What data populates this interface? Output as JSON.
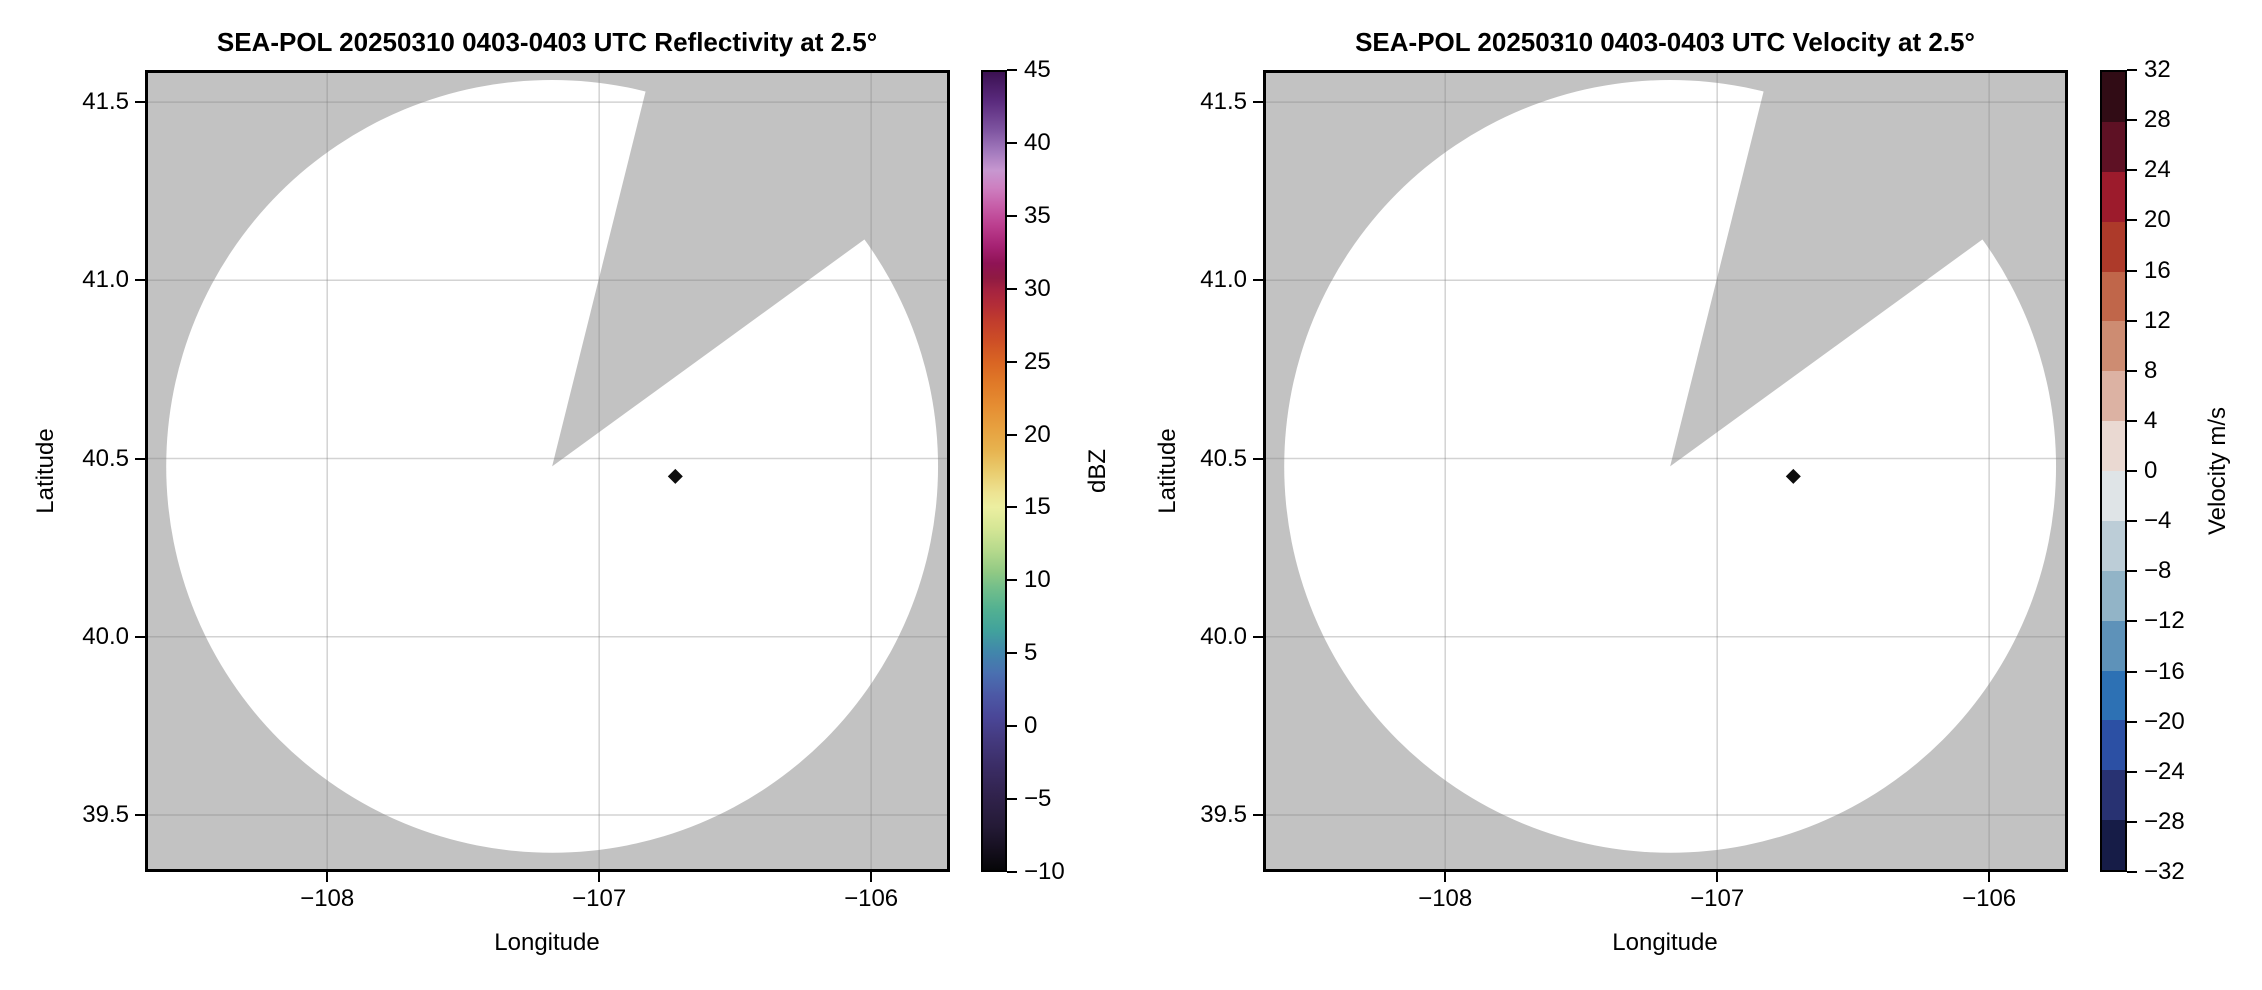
{
  "figure": {
    "background": "#ffffff",
    "mask_gray": "#c2c2c2",
    "scan_white": "#ffffff",
    "grid_color": "rgba(130,130,130,0.35)",
    "marker_color": "#0d0d0d",
    "spine_color": "#000000"
  },
  "panels": [
    {
      "title": "SEA-POL 20250310 0403-0403 UTC Reflectivity at 2.5°",
      "xlabel": "Longitude",
      "ylabel": "Latitude",
      "xtick_labels": [
        "−108",
        "−107",
        "−106"
      ],
      "ytick_labels": [
        "41.5",
        "41.0",
        "40.5",
        "40.0",
        "39.5"
      ]
    },
    {
      "title": "SEA-POL 20250310 0403-0403 UTC Velocity at 2.5°",
      "xlabel": "Longitude",
      "ylabel": "Latitude",
      "xtick_labels": [
        "−108",
        "−107",
        "−106"
      ],
      "ytick_labels": [
        "41.5",
        "41.0",
        "40.5",
        "40.0",
        "39.5"
      ]
    }
  ],
  "colorbars": [
    {
      "label": "dBZ",
      "type": "gradient",
      "vmin": -10,
      "vmax": 45,
      "tick_values": [
        45,
        40,
        35,
        30,
        25,
        20,
        15,
        10,
        5,
        0,
        -5,
        -10
      ],
      "tick_labels": [
        "45",
        "40",
        "35",
        "30",
        "25",
        "20",
        "15",
        "10",
        "5",
        "0",
        "−5",
        "−10"
      ],
      "gradient_stops": [
        [
          45,
          "#3b1152"
        ],
        [
          43,
          "#5a2a7d"
        ],
        [
          41,
          "#7e54a0"
        ],
        [
          39.5,
          "#a37abd"
        ],
        [
          38.2,
          "#c797d0"
        ],
        [
          37,
          "#cd7fc0"
        ],
        [
          35.8,
          "#c75fa9"
        ],
        [
          34.5,
          "#bc4090"
        ],
        [
          33,
          "#a62273"
        ],
        [
          31.8,
          "#8f1355"
        ],
        [
          30.8,
          "#8f1a42"
        ],
        [
          30,
          "#a42240"
        ],
        [
          29,
          "#b22c38"
        ],
        [
          28,
          "#bf3a2e"
        ],
        [
          26.5,
          "#cd4e26"
        ],
        [
          25,
          "#d96523"
        ],
        [
          23.5,
          "#e07a28"
        ],
        [
          22,
          "#e58d32"
        ],
        [
          20.5,
          "#e7a03f"
        ],
        [
          19,
          "#e7b24e"
        ],
        [
          17.5,
          "#e9cb6d"
        ],
        [
          16,
          "#ede392"
        ],
        [
          15,
          "#ecefa1"
        ],
        [
          13.5,
          "#d4e695"
        ],
        [
          12,
          "#b5d98c"
        ],
        [
          10.5,
          "#90c984"
        ],
        [
          9.5,
          "#74bf8a"
        ],
        [
          8,
          "#53b191"
        ],
        [
          6.5,
          "#41a29c"
        ],
        [
          5,
          "#4186ab"
        ],
        [
          3.5,
          "#4a6fb0"
        ],
        [
          2,
          "#4c58a5"
        ],
        [
          0.5,
          "#4a4697"
        ],
        [
          -1,
          "#443a7f"
        ],
        [
          -3,
          "#3a2c64"
        ],
        [
          -5,
          "#30224b"
        ],
        [
          -7,
          "#241a36"
        ],
        [
          -8.5,
          "#161020"
        ],
        [
          -10,
          "#060608"
        ]
      ]
    },
    {
      "label": "Velocity m/s",
      "type": "discrete",
      "vmin": -32,
      "vmax": 32,
      "tick_values": [
        32,
        28,
        24,
        20,
        16,
        12,
        8,
        4,
        0,
        -4,
        -8,
        -12,
        -16,
        -20,
        -24,
        -28,
        -32
      ],
      "tick_labels": [
        "32",
        "28",
        "24",
        "20",
        "16",
        "12",
        "8",
        "4",
        "0",
        "−4",
        "−8",
        "−12",
        "−16",
        "−20",
        "−24",
        "−28",
        "−32"
      ],
      "bands_top_to_bottom": [
        "#310c15",
        "#5e1124",
        "#9c1b2c",
        "#ad3a2a",
        "#c0664a",
        "#cd8c72",
        "#dcb2a3",
        "#ead9d2",
        "#dfe4e7",
        "#bccdd7",
        "#92b4c7",
        "#5e92b9",
        "#2d71b4",
        "#2c50a4",
        "#283272",
        "#161c47"
      ]
    }
  ],
  "chart_data": {
    "type": "radar_ppi",
    "title_left": "SEA-POL 20250310 0403-0403 UTC Reflectivity at 2.5°",
    "title_right": "SEA-POL 20250310 0403-0403 UTC Velocity at 2.5°",
    "xlabel": "Longitude",
    "ylabel": "Latitude",
    "xlim": [
      -108.67,
      -105.71
    ],
    "ylim": [
      39.34,
      41.59
    ],
    "xticks": [
      -108,
      -107,
      -106
    ],
    "yticks": [
      39.5,
      40.0,
      40.5,
      41.0,
      41.5
    ],
    "grid": true,
    "radar": {
      "lon": -107.173,
      "lat": 40.478,
      "coverage_radius_deg_lon": 1.419,
      "coverage_radius_deg_lat": 1.084,
      "blocked_sector_azimuth_deg": [
        14,
        54
      ]
    },
    "marker_diamond": {
      "lon": -106.72,
      "lat": 40.45
    },
    "fields": [
      {
        "name": "Reflectivity",
        "units": "dBZ",
        "vmin": -10,
        "vmax": 45,
        "echoes": "none (scan area blank/white)"
      },
      {
        "name": "Velocity",
        "units": "m/s",
        "vmin": -32,
        "vmax": 32,
        "echoes": "none (scan area blank/white)"
      }
    ],
    "legend_position": "right colorbars"
  }
}
